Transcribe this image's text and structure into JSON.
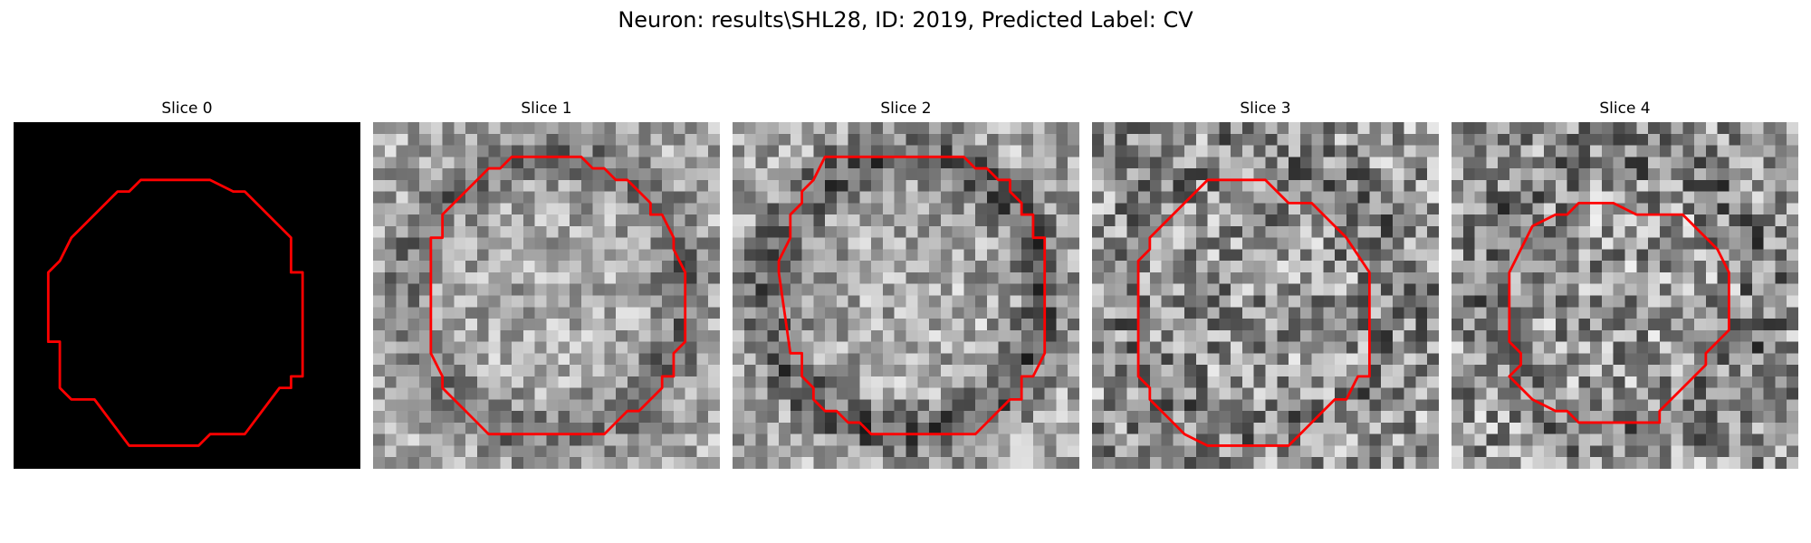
{
  "figure": {
    "title": "Neuron: results\\SHL28, ID: 2019, Predicted Label: CV"
  },
  "contour_color": "#ff0000",
  "grid": {
    "cells": 30
  },
  "slices": [
    {
      "title": "Slice 0",
      "background": "black",
      "seed": 1,
      "mean": 0.0,
      "ring": 0.0,
      "noise": 0.0,
      "contour": [
        [
          11,
          5
        ],
        [
          17,
          5
        ],
        [
          19,
          6
        ],
        [
          20,
          6
        ],
        [
          24,
          10
        ],
        [
          24,
          13
        ],
        [
          25,
          13
        ],
        [
          25,
          22
        ],
        [
          24,
          22
        ],
        [
          24,
          23
        ],
        [
          23,
          23
        ],
        [
          20,
          27
        ],
        [
          17,
          27
        ],
        [
          16,
          28
        ],
        [
          10,
          28
        ],
        [
          7,
          24
        ],
        [
          5,
          24
        ],
        [
          4,
          23
        ],
        [
          4,
          19
        ],
        [
          3,
          19
        ],
        [
          3,
          13
        ],
        [
          4,
          12
        ],
        [
          5,
          10
        ],
        [
          9,
          6
        ],
        [
          10,
          6
        ]
      ]
    },
    {
      "title": "Slice 1",
      "background": "noise",
      "seed": 11,
      "mean": 0.66,
      "ring": 0.22,
      "noise": 0.24,
      "contour": [
        [
          13,
          3
        ],
        [
          18,
          3
        ],
        [
          19,
          4
        ],
        [
          20,
          4
        ],
        [
          21,
          5
        ],
        [
          22,
          5
        ],
        [
          23,
          6
        ],
        [
          24,
          7
        ],
        [
          24,
          8
        ],
        [
          25,
          8
        ],
        [
          26,
          10
        ],
        [
          26,
          11
        ],
        [
          27,
          13
        ],
        [
          27,
          19
        ],
        [
          26,
          20
        ],
        [
          26,
          22
        ],
        [
          25,
          22
        ],
        [
          25,
          23
        ],
        [
          24,
          24
        ],
        [
          23,
          25
        ],
        [
          22,
          25
        ],
        [
          21,
          26
        ],
        [
          20,
          27
        ],
        [
          10,
          27
        ],
        [
          9,
          26
        ],
        [
          8,
          25
        ],
        [
          7,
          24
        ],
        [
          6,
          23
        ],
        [
          6,
          22
        ],
        [
          5,
          20
        ],
        [
          5,
          10
        ],
        [
          6,
          10
        ],
        [
          6,
          8
        ],
        [
          7,
          7
        ],
        [
          8,
          6
        ],
        [
          9,
          5
        ],
        [
          10,
          4
        ],
        [
          11,
          4
        ],
        [
          12,
          3
        ]
      ]
    },
    {
      "title": "Slice 2",
      "background": "noise",
      "seed": 23,
      "mean": 0.66,
      "ring": 0.3,
      "noise": 0.26,
      "contour": [
        [
          8,
          3
        ],
        [
          20,
          3
        ],
        [
          21,
          4
        ],
        [
          22,
          4
        ],
        [
          23,
          5
        ],
        [
          24,
          5
        ],
        [
          24,
          6
        ],
        [
          25,
          7
        ],
        [
          25,
          8
        ],
        [
          26,
          8
        ],
        [
          26,
          10
        ],
        [
          27,
          10
        ],
        [
          27,
          12
        ],
        [
          27,
          20
        ],
        [
          26,
          22
        ],
        [
          25,
          22
        ],
        [
          25,
          24
        ],
        [
          24,
          24
        ],
        [
          23,
          25
        ],
        [
          22,
          26
        ],
        [
          21,
          27
        ],
        [
          12,
          27
        ],
        [
          11,
          26
        ],
        [
          10,
          26
        ],
        [
          9,
          25
        ],
        [
          8,
          25
        ],
        [
          7,
          24
        ],
        [
          7,
          23
        ],
        [
          6,
          22
        ],
        [
          6,
          20
        ],
        [
          5,
          20
        ],
        [
          4,
          13
        ],
        [
          4,
          12
        ],
        [
          5,
          10
        ],
        [
          5,
          8
        ],
        [
          6,
          7
        ],
        [
          6,
          6
        ],
        [
          7,
          5
        ]
      ]
    },
    {
      "title": "Slice 3",
      "background": "noise",
      "seed": 37,
      "mean": 0.58,
      "ring": 0.08,
      "noise": 0.34,
      "contour": [
        [
          10,
          5
        ],
        [
          15,
          5
        ],
        [
          17,
          7
        ],
        [
          19,
          7
        ],
        [
          22,
          10
        ],
        [
          24,
          13
        ],
        [
          24,
          22
        ],
        [
          23,
          22
        ],
        [
          22,
          24
        ],
        [
          21,
          24
        ],
        [
          20,
          25
        ],
        [
          19,
          26
        ],
        [
          18,
          27
        ],
        [
          17,
          28
        ],
        [
          10,
          28
        ],
        [
          8,
          27
        ],
        [
          7,
          26
        ],
        [
          6,
          25
        ],
        [
          5,
          24
        ],
        [
          5,
          23
        ],
        [
          4,
          22
        ],
        [
          4,
          12
        ],
        [
          5,
          11
        ],
        [
          5,
          10
        ],
        [
          6,
          9
        ],
        [
          8,
          7
        ],
        [
          9,
          6
        ]
      ]
    },
    {
      "title": "Slice 4",
      "background": "noise",
      "seed": 53,
      "mean": 0.6,
      "ring": 0.14,
      "noise": 0.34,
      "contour": [
        [
          12,
          7
        ],
        [
          13,
          7
        ],
        [
          14,
          7
        ],
        [
          16,
          8
        ],
        [
          20,
          8
        ],
        [
          21,
          9
        ],
        [
          22,
          10
        ],
        [
          23,
          11
        ],
        [
          24,
          13
        ],
        [
          24,
          15
        ],
        [
          24,
          17
        ],
        [
          24,
          18
        ],
        [
          23,
          19
        ],
        [
          22,
          20
        ],
        [
          22,
          21
        ],
        [
          21,
          22
        ],
        [
          19,
          24
        ],
        [
          18,
          25
        ],
        [
          18,
          26
        ],
        [
          12,
          26
        ],
        [
          11,
          26
        ],
        [
          10,
          25
        ],
        [
          9,
          25
        ],
        [
          7,
          24
        ],
        [
          6,
          23
        ],
        [
          5,
          22
        ],
        [
          6,
          21
        ],
        [
          6,
          20
        ],
        [
          5,
          19
        ],
        [
          5,
          13
        ],
        [
          6,
          11
        ],
        [
          7,
          9
        ],
        [
          9,
          8
        ],
        [
          10,
          8
        ],
        [
          11,
          7
        ]
      ]
    }
  ]
}
